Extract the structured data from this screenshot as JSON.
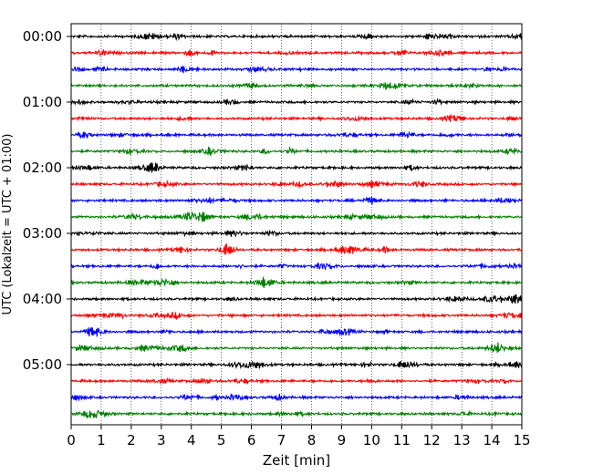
{
  "chart_data": {
    "type": "line",
    "title": "",
    "xlabel": "Zeit  [min]",
    "ylabel": "UTC (Lokalzeit = UTC + 01:00)",
    "xlim": [
      0,
      15
    ],
    "x_ticks": [
      "0",
      "1",
      "2",
      "3",
      "4",
      "5",
      "6",
      "7",
      "8",
      "9",
      "10",
      "11",
      "12",
      "13",
      "14",
      "15"
    ],
    "y_ticks": [
      "00:00",
      "01:00",
      "02:00",
      "03:00",
      "04:00",
      "05:00"
    ],
    "grid": "vertical dotted lines at each minute",
    "trace_interval_min": 15,
    "trace_count": 24,
    "color_cycle": [
      "#000000",
      "#ff0000",
      "#0000ff",
      "#008000"
    ],
    "series": [
      {
        "start": "00:00"
      },
      {
        "start": "00:15"
      },
      {
        "start": "00:30"
      },
      {
        "start": "00:45"
      },
      {
        "start": "01:00"
      },
      {
        "start": "01:15"
      },
      {
        "start": "01:30"
      },
      {
        "start": "01:45"
      },
      {
        "start": "02:00"
      },
      {
        "start": "02:15"
      },
      {
        "start": "02:30"
      },
      {
        "start": "02:45"
      },
      {
        "start": "03:00"
      },
      {
        "start": "03:15"
      },
      {
        "start": "03:30"
      },
      {
        "start": "03:45"
      },
      {
        "start": "04:00"
      },
      {
        "start": "04:15"
      },
      {
        "start": "04:30"
      },
      {
        "start": "04:45"
      },
      {
        "start": "05:00"
      },
      {
        "start": "05:15"
      },
      {
        "start": "05:30"
      },
      {
        "start": "05:45"
      }
    ]
  }
}
